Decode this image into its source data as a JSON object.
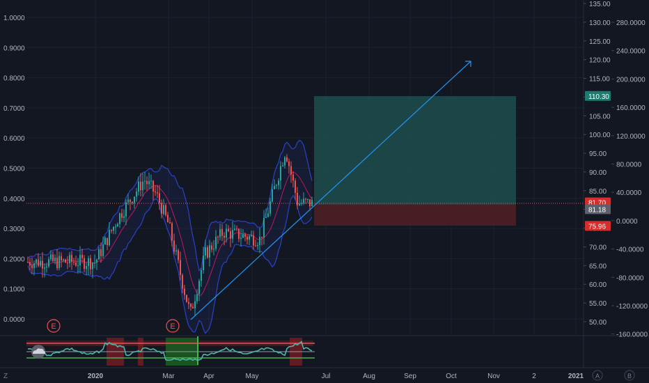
{
  "colors": {
    "background": "#131722",
    "grid": "#1e222d",
    "axis_text": "#b2b5be",
    "up_candle": "#26a69a",
    "down_candle": "#ef5350",
    "bollinger": "#2940bd",
    "basis": "#c2185b",
    "trendline": "#2196f3",
    "profit_zone": "#1f4d4f",
    "loss_zone": "#4d1f25",
    "indicator_line": "#4db6ac",
    "current_price": "#ef5350"
  },
  "left_axis": {
    "ticks": [
      "1.0000",
      "0.9000",
      "0.8000",
      "0.7000",
      "0.6000",
      "0.5000",
      "0.4000",
      "0.3000",
      "0.2000",
      "0.1000",
      "0.0000"
    ]
  },
  "right_axis": {
    "price_ticks": [
      "135.00",
      "130.00",
      "125.00",
      "120.00",
      "115.00",
      "110.00",
      "105.00",
      "100.00",
      "95.00",
      "90.00",
      "85.00",
      "80.00",
      "75.00",
      "70.00",
      "65.00",
      "60.00",
      "55.00",
      "50.00"
    ],
    "percent_ticks": [
      "280.0000",
      "240.0000",
      "200.0000",
      "160.0000",
      "120.0000",
      "80.0000",
      "40.0000",
      "0.0000",
      "-40.0000",
      "-80.0000",
      "-120.0000",
      "-160.0000"
    ],
    "badges": [
      {
        "label": "110.30",
        "color": "#1e7b72"
      },
      {
        "label": "81.70",
        "color": "#d32f2f"
      },
      {
        "label": "81.18",
        "color": "#5d606b"
      },
      {
        "label": "75.96",
        "color": "#d32f2f"
      }
    ]
  },
  "time_axis": {
    "labels": [
      "2020",
      "Mar",
      "Apr",
      "May",
      "Jul",
      "Aug",
      "Sep",
      "Oct",
      "Nov",
      "2",
      "2021"
    ]
  },
  "earnings_markers": [
    "E",
    "E"
  ],
  "position_tool": {
    "target_price": 110.3,
    "entry_price": 81.18,
    "stop_price": 75.96
  },
  "bottom_bar": {
    "left_button": "Z",
    "right_buttons": [
      "A",
      "B"
    ]
  },
  "chart_data": {
    "type": "candlestick",
    "y_range": [
      50,
      135
    ],
    "series_close": [
      {
        "x": "2019-12-01",
        "y": 66
      },
      {
        "x": "2020-01-01",
        "y": 66
      },
      {
        "x": "2020-01-20",
        "y": 78
      },
      {
        "x": "2020-02-10",
        "y": 88
      },
      {
        "x": "2020-02-20",
        "y": 84
      },
      {
        "x": "2020-03-01",
        "y": 76
      },
      {
        "x": "2020-03-15",
        "y": 57
      },
      {
        "x": "2020-03-19",
        "y": 52
      },
      {
        "x": "2020-03-31",
        "y": 68
      },
      {
        "x": "2020-04-15",
        "y": 74
      },
      {
        "x": "2020-05-15",
        "y": 72
      },
      {
        "x": "2020-06-05",
        "y": 96
      },
      {
        "x": "2020-06-15",
        "y": 81.7
      }
    ],
    "current_price": 81.7
  }
}
